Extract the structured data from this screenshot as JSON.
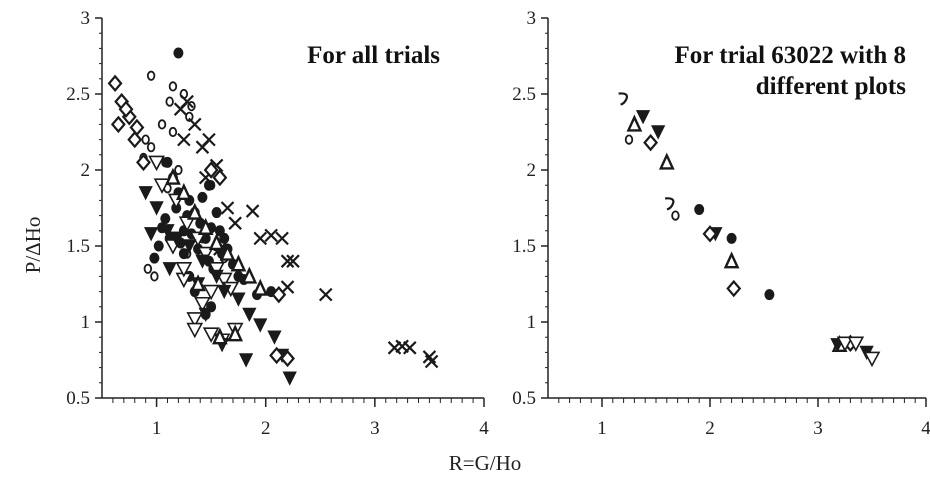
{
  "chart_data": [
    {
      "type": "scatter",
      "title_lines": [
        "For all trials"
      ],
      "xlim": [
        0.5,
        4
      ],
      "ylim": [
        0.5,
        3
      ],
      "xticks": [
        1,
        2,
        3,
        4
      ],
      "xtick_labels": [
        "1",
        "2",
        "3",
        "4"
      ],
      "yticks": [
        0.5,
        1,
        1.5,
        2,
        2.5,
        3
      ],
      "ytick_labels": [
        "0.5",
        "1",
        "1.5",
        "2",
        "2.5",
        "3"
      ],
      "grid": false,
      "series": [
        {
          "marker": "x",
          "x": [
            1.22,
            1.28,
            1.35,
            1.42,
            1.48,
            1.55,
            1.45,
            1.65,
            1.72,
            1.88,
            1.95,
            2.05,
            2.15,
            2.2,
            2.25,
            2.2,
            2.55,
            1.58,
            1.25,
            3.18,
            3.25,
            3.32,
            3.5,
            3.52
          ],
          "y": [
            2.4,
            2.45,
            2.3,
            2.15,
            2.2,
            2.03,
            1.95,
            1.75,
            1.65,
            1.73,
            1.55,
            1.57,
            1.55,
            1.4,
            1.4,
            1.23,
            1.18,
            1.48,
            2.2,
            0.83,
            0.84,
            0.83,
            0.77,
            0.74
          ]
        },
        {
          "marker": "circle-open",
          "x": [
            0.95,
            1.15,
            1.12,
            1.25,
            1.32,
            1.15,
            1.05,
            0.9,
            0.95,
            1.3,
            1.08,
            1.2,
            1.5,
            1.1,
            1.28,
            0.98,
            1.42,
            0.88,
            0.92,
            1.62
          ],
          "y": [
            2.62,
            2.55,
            2.45,
            2.5,
            2.42,
            2.25,
            2.3,
            2.2,
            2.15,
            2.35,
            2.05,
            2.0,
            1.9,
            1.88,
            1.45,
            1.3,
            1.55,
            2.08,
            1.35,
            1.42
          ]
        },
        {
          "marker": "circle-filled",
          "x": [
            1.2,
            1.1,
            1.15,
            1.2,
            1.3,
            1.35,
            1.4,
            1.25,
            1.18,
            1.22,
            1.32,
            1.38,
            1.45,
            1.5,
            1.55,
            1.6,
            1.48,
            1.52,
            1.28,
            1.18,
            1.05,
            1.12,
            0.98,
            1.02,
            1.08,
            1.42,
            1.62,
            1.58,
            1.65,
            1.7,
            1.5,
            1.45,
            1.35,
            1.3,
            1.25,
            1.75,
            1.8,
            1.92,
            2.05,
            1.48,
            1.55
          ],
          "y": [
            2.77,
            2.05,
            1.95,
            1.85,
            1.8,
            1.72,
            1.65,
            1.6,
            1.55,
            1.52,
            1.58,
            1.48,
            1.55,
            1.62,
            1.5,
            1.45,
            1.4,
            1.35,
            1.7,
            1.75,
            1.62,
            1.55,
            1.42,
            1.5,
            1.68,
            1.82,
            1.55,
            1.6,
            1.48,
            1.38,
            1.1,
            1.05,
            1.2,
            1.3,
            1.45,
            1.3,
            1.28,
            1.18,
            1.2,
            1.9,
            1.72
          ]
        },
        {
          "marker": "triangle-down-open",
          "x": [
            1.0,
            1.05,
            1.18,
            1.28,
            1.38,
            1.45,
            1.55,
            1.62,
            1.68,
            1.5,
            1.42,
            1.35,
            1.25,
            1.18,
            1.35,
            1.5,
            1.6,
            1.72,
            1.15,
            1.25
          ],
          "y": [
            2.05,
            1.9,
            1.8,
            1.65,
            1.55,
            1.45,
            1.35,
            1.28,
            1.22,
            1.2,
            1.12,
            1.02,
            1.28,
            1.55,
            0.95,
            0.92,
            0.88,
            0.95,
            1.5,
            1.35
          ]
        },
        {
          "marker": "triangle-down-filled",
          "x": [
            0.9,
            1.0,
            1.1,
            1.18,
            1.3,
            1.42,
            1.55,
            1.62,
            1.75,
            1.85,
            1.95,
            2.08,
            2.15,
            2.22,
            1.45,
            1.6,
            1.82,
            0.95,
            1.12,
            1.38
          ],
          "y": [
            1.85,
            1.75,
            1.6,
            1.55,
            1.5,
            1.4,
            1.3,
            1.2,
            1.15,
            1.05,
            0.98,
            0.9,
            0.78,
            0.63,
            1.05,
            0.85,
            0.75,
            1.58,
            1.35,
            1.25
          ]
        },
        {
          "marker": "triangle-up-open",
          "x": [
            1.15,
            1.25,
            1.35,
            1.45,
            1.55,
            1.65,
            1.75,
            1.85,
            1.95,
            1.58,
            1.72,
            1.38
          ],
          "y": [
            1.95,
            1.85,
            1.72,
            1.62,
            1.52,
            1.45,
            1.38,
            1.3,
            1.22,
            0.9,
            0.92,
            1.25
          ]
        },
        {
          "marker": "diamond",
          "x": [
            0.62,
            0.68,
            0.75,
            0.82,
            0.65,
            0.72,
            0.8,
            0.88,
            1.5,
            1.58,
            2.1,
            2.2,
            2.12
          ],
          "y": [
            2.57,
            2.45,
            2.35,
            2.28,
            2.3,
            2.4,
            2.2,
            2.05,
            2.0,
            1.95,
            0.78,
            0.76,
            1.18
          ]
        }
      ]
    },
    {
      "type": "scatter",
      "title_lines": [
        "For trial 63022 with 8",
        "different plots"
      ],
      "xlim": [
        0.5,
        4
      ],
      "ylim": [
        0.5,
        3
      ],
      "xticks": [
        1,
        2,
        3,
        4
      ],
      "xtick_labels": [
        "1",
        "2",
        "3",
        "4"
      ],
      "yticks": [
        0.5,
        1,
        1.5,
        2,
        2.5,
        3
      ],
      "ytick_labels": [
        "0.5",
        "1",
        "1.5",
        "2",
        "2.5",
        "3"
      ],
      "grid": false,
      "series": [
        {
          "marker": "hook",
          "x": [
            1.2,
            1.63
          ],
          "y": [
            2.47,
            1.78
          ]
        },
        {
          "marker": "circle-open",
          "x": [
            1.25,
            1.68
          ],
          "y": [
            2.2,
            1.7
          ]
        },
        {
          "marker": "triangle-up-open",
          "x": [
            1.3,
            1.6,
            2.2,
            3.2
          ],
          "y": [
            2.3,
            2.05,
            1.4,
            0.85
          ]
        },
        {
          "marker": "triangle-down-filled",
          "x": [
            1.38,
            1.52,
            2.05,
            3.18,
            3.45
          ],
          "y": [
            2.35,
            2.25,
            1.58,
            0.85,
            0.8
          ]
        },
        {
          "marker": "diamond",
          "x": [
            1.45,
            2.0,
            2.22,
            3.3
          ],
          "y": [
            2.18,
            1.58,
            1.22,
            0.86
          ]
        },
        {
          "marker": "circle-filled",
          "x": [
            1.9,
            2.2,
            2.55
          ],
          "y": [
            1.74,
            1.55,
            1.18
          ]
        },
        {
          "marker": "triangle-down-open",
          "x": [
            3.25,
            3.35,
            3.5
          ],
          "y": [
            0.86,
            0.86,
            0.76
          ]
        }
      ]
    }
  ],
  "axes": {
    "ylabel": "P/ΔHo",
    "xlabel": "R=G/Ho"
  },
  "colors": {
    "marker": "#1a1a1a",
    "axis": "#222222"
  }
}
